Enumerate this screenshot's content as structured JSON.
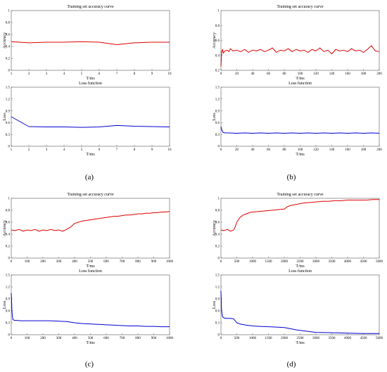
{
  "panel_labels": [
    "(a)",
    "(b)",
    "(c)",
    "(d)"
  ],
  "chart_data": [
    {
      "type": "line",
      "panel": "(a)",
      "title": "Training set accuracy curve",
      "xlabel": "T/ms",
      "ylabel": "Accuracy",
      "xlim": [
        1,
        10
      ],
      "ylim": [
        0,
        1
      ],
      "xticks": [
        1,
        2,
        3,
        4,
        5,
        6,
        7,
        8,
        9,
        10
      ],
      "yticks": [
        0,
        0.2,
        0.4,
        0.6,
        0.8,
        1
      ],
      "series": [
        {
          "color": "#e00000",
          "x": [
            1,
            2,
            3,
            4,
            5,
            6,
            7,
            8,
            9,
            10
          ],
          "y": [
            0.48,
            0.46,
            0.47,
            0.47,
            0.48,
            0.47,
            0.43,
            0.46,
            0.47,
            0.47
          ]
        }
      ]
    },
    {
      "type": "line",
      "panel": "(a)",
      "title": "Loss function",
      "xlabel": "T/ms",
      "ylabel": "Loss",
      "xlim": [
        1,
        10
      ],
      "ylim": [
        0,
        1.5
      ],
      "xticks": [
        1,
        2,
        3,
        4,
        5,
        6,
        7,
        8,
        9,
        10
      ],
      "yticks": [
        0,
        0.3,
        0.6,
        0.9,
        1.2,
        1.5
      ],
      "series": [
        {
          "color": "#0000d0",
          "x": [
            1,
            2,
            3,
            4,
            5,
            6,
            7,
            8,
            9,
            10
          ],
          "y": [
            0.75,
            0.5,
            0.49,
            0.49,
            0.48,
            0.49,
            0.53,
            0.51,
            0.5,
            0.49
          ]
        }
      ]
    },
    {
      "type": "line",
      "panel": "(b)",
      "title": "Training set accuracy curve",
      "xlabel": "T/ms",
      "ylabel": "Accuracy",
      "xlim": [
        0,
        200
      ],
      "ylim": [
        0.2,
        1
      ],
      "xticks": [
        0,
        20,
        40,
        60,
        80,
        100,
        120,
        140,
        160,
        180,
        200
      ],
      "yticks": [
        0.2,
        0.4,
        0.6,
        0.8,
        1
      ],
      "series": [
        {
          "color": "#e00000",
          "x": [
            0,
            1,
            2,
            3,
            5,
            8,
            10,
            12,
            15,
            20,
            25,
            30,
            35,
            40,
            45,
            50,
            55,
            60,
            65,
            70,
            75,
            80,
            85,
            90,
            95,
            100,
            105,
            110,
            115,
            120,
            125,
            130,
            135,
            140,
            145,
            150,
            155,
            160,
            165,
            170,
            175,
            180,
            185,
            190,
            195,
            200
          ],
          "y": [
            0.25,
            0.45,
            0.48,
            0.43,
            0.46,
            0.47,
            0.45,
            0.49,
            0.46,
            0.47,
            0.45,
            0.48,
            0.44,
            0.47,
            0.46,
            0.48,
            0.45,
            0.47,
            0.5,
            0.44,
            0.47,
            0.46,
            0.49,
            0.45,
            0.48,
            0.46,
            0.47,
            0.44,
            0.48,
            0.46,
            0.5,
            0.45,
            0.47,
            0.42,
            0.48,
            0.46,
            0.47,
            0.45,
            0.49,
            0.46,
            0.47,
            0.44,
            0.48,
            0.53,
            0.46,
            0.45
          ]
        }
      ]
    },
    {
      "type": "line",
      "panel": "(b)",
      "title": "Loss function",
      "xlabel": "T/ms",
      "ylabel": "Loss",
      "xlim": [
        0,
        200
      ],
      "ylim": [
        0,
        1.5
      ],
      "xticks": [
        0,
        20,
        40,
        60,
        80,
        100,
        120,
        140,
        160,
        180,
        200
      ],
      "yticks": [
        0,
        0.3,
        0.6,
        0.9,
        1.2,
        1.5
      ],
      "series": [
        {
          "color": "#0000d0",
          "x": [
            0,
            1,
            2,
            3,
            5,
            10,
            20,
            30,
            40,
            50,
            60,
            70,
            80,
            90,
            100,
            110,
            120,
            130,
            140,
            150,
            160,
            170,
            180,
            190,
            200
          ],
          "y": [
            0.5,
            0.42,
            0.37,
            0.35,
            0.34,
            0.34,
            0.33,
            0.34,
            0.33,
            0.34,
            0.33,
            0.34,
            0.33,
            0.34,
            0.33,
            0.34,
            0.33,
            0.34,
            0.33,
            0.34,
            0.33,
            0.34,
            0.33,
            0.34,
            0.33
          ]
        }
      ]
    },
    {
      "type": "line",
      "panel": "(c)",
      "title": "Training set accuracy curve",
      "xlabel": "T/ms",
      "ylabel": "Accuracy",
      "xlim": [
        0,
        1000
      ],
      "ylim": [
        0,
        1
      ],
      "xticks": [
        0,
        100,
        200,
        300,
        400,
        500,
        600,
        700,
        800,
        900,
        1000
      ],
      "yticks": [
        0,
        0.2,
        0.4,
        0.6,
        0.8,
        1
      ],
      "series": [
        {
          "color": "#e00000",
          "x": [
            0,
            25,
            50,
            75,
            100,
            125,
            150,
            175,
            200,
            225,
            250,
            275,
            300,
            325,
            350,
            375,
            400,
            425,
            450,
            475,
            500,
            525,
            550,
            575,
            600,
            625,
            650,
            675,
            700,
            725,
            750,
            775,
            800,
            825,
            850,
            875,
            900,
            925,
            950,
            975,
            1000
          ],
          "y": [
            0.47,
            0.46,
            0.48,
            0.45,
            0.47,
            0.46,
            0.48,
            0.45,
            0.47,
            0.46,
            0.48,
            0.46,
            0.47,
            0.45,
            0.48,
            0.52,
            0.58,
            0.6,
            0.62,
            0.63,
            0.64,
            0.65,
            0.66,
            0.67,
            0.68,
            0.69,
            0.7,
            0.7,
            0.71,
            0.72,
            0.72,
            0.73,
            0.74,
            0.74,
            0.75,
            0.75,
            0.76,
            0.76,
            0.77,
            0.77,
            0.78
          ]
        }
      ]
    },
    {
      "type": "line",
      "panel": "(c)",
      "title": "Loss function",
      "xlabel": "T/ms",
      "ylabel": "Loss",
      "xlim": [
        0,
        1000
      ],
      "ylim": [
        0,
        1.5
      ],
      "xticks": [
        0,
        100,
        200,
        300,
        400,
        500,
        600,
        700,
        800,
        900,
        1000
      ],
      "yticks": [
        0,
        0.3,
        0.6,
        0.9,
        1.2,
        1.5
      ],
      "series": [
        {
          "color": "#0000d0",
          "x": [
            0,
            5,
            10,
            20,
            40,
            60,
            100,
            150,
            200,
            250,
            300,
            350,
            400,
            450,
            500,
            550,
            600,
            650,
            700,
            750,
            800,
            850,
            900,
            950,
            1000
          ],
          "y": [
            1.05,
            0.55,
            0.38,
            0.36,
            0.36,
            0.35,
            0.35,
            0.35,
            0.35,
            0.35,
            0.34,
            0.33,
            0.3,
            0.28,
            0.27,
            0.26,
            0.25,
            0.24,
            0.23,
            0.22,
            0.22,
            0.21,
            0.21,
            0.2,
            0.2
          ]
        }
      ]
    },
    {
      "type": "line",
      "panel": "(d)",
      "title": "Training set accuracy curve",
      "xlabel": "T/ms",
      "ylabel": "Accuracy",
      "xlim": [
        0,
        5000
      ],
      "ylim": [
        0,
        1
      ],
      "xticks": [
        0,
        500,
        1000,
        1500,
        2000,
        2500,
        3000,
        3500,
        4000,
        4500,
        5000
      ],
      "yticks": [
        0,
        0.2,
        0.4,
        0.6,
        0.8,
        1
      ],
      "series": [
        {
          "color": "#e00000",
          "x": [
            0,
            100,
            200,
            300,
            400,
            450,
            500,
            550,
            600,
            700,
            800,
            900,
            1000,
            1200,
            1400,
            1600,
            1800,
            2000,
            2100,
            2200,
            2400,
            2600,
            2800,
            3000,
            3200,
            3400,
            3600,
            3800,
            4000,
            4200,
            4400,
            4600,
            4800,
            5000
          ],
          "y": [
            0.47,
            0.46,
            0.48,
            0.45,
            0.47,
            0.52,
            0.6,
            0.64,
            0.68,
            0.72,
            0.74,
            0.76,
            0.77,
            0.78,
            0.79,
            0.8,
            0.81,
            0.82,
            0.86,
            0.88,
            0.9,
            0.92,
            0.93,
            0.94,
            0.95,
            0.95,
            0.96,
            0.96,
            0.97,
            0.97,
            0.97,
            0.97,
            0.98,
            0.98
          ]
        }
      ]
    },
    {
      "type": "line",
      "panel": "(d)",
      "title": "Loss function",
      "xlabel": "T/ms",
      "ylabel": "Loss",
      "xlim": [
        0,
        5000
      ],
      "ylim": [
        0,
        1.5
      ],
      "xticks": [
        0,
        500,
        1000,
        1500,
        2000,
        2500,
        3000,
        3500,
        4000,
        4500,
        5000
      ],
      "yticks": [
        0,
        0.3,
        0.6,
        0.9,
        1.2,
        1.5
      ],
      "series": [
        {
          "color": "#0000d0",
          "x": [
            0,
            20,
            50,
            100,
            200,
            300,
            400,
            450,
            500,
            600,
            800,
            1000,
            1200,
            1500,
            1800,
            2000,
            2200,
            2400,
            2600,
            2800,
            3000,
            3500,
            4000,
            4500,
            5000
          ],
          "y": [
            1.1,
            0.6,
            0.45,
            0.42,
            0.41,
            0.41,
            0.4,
            0.35,
            0.3,
            0.27,
            0.24,
            0.22,
            0.21,
            0.2,
            0.19,
            0.18,
            0.15,
            0.12,
            0.1,
            0.08,
            0.06,
            0.05,
            0.04,
            0.03,
            0.03
          ]
        }
      ]
    }
  ]
}
